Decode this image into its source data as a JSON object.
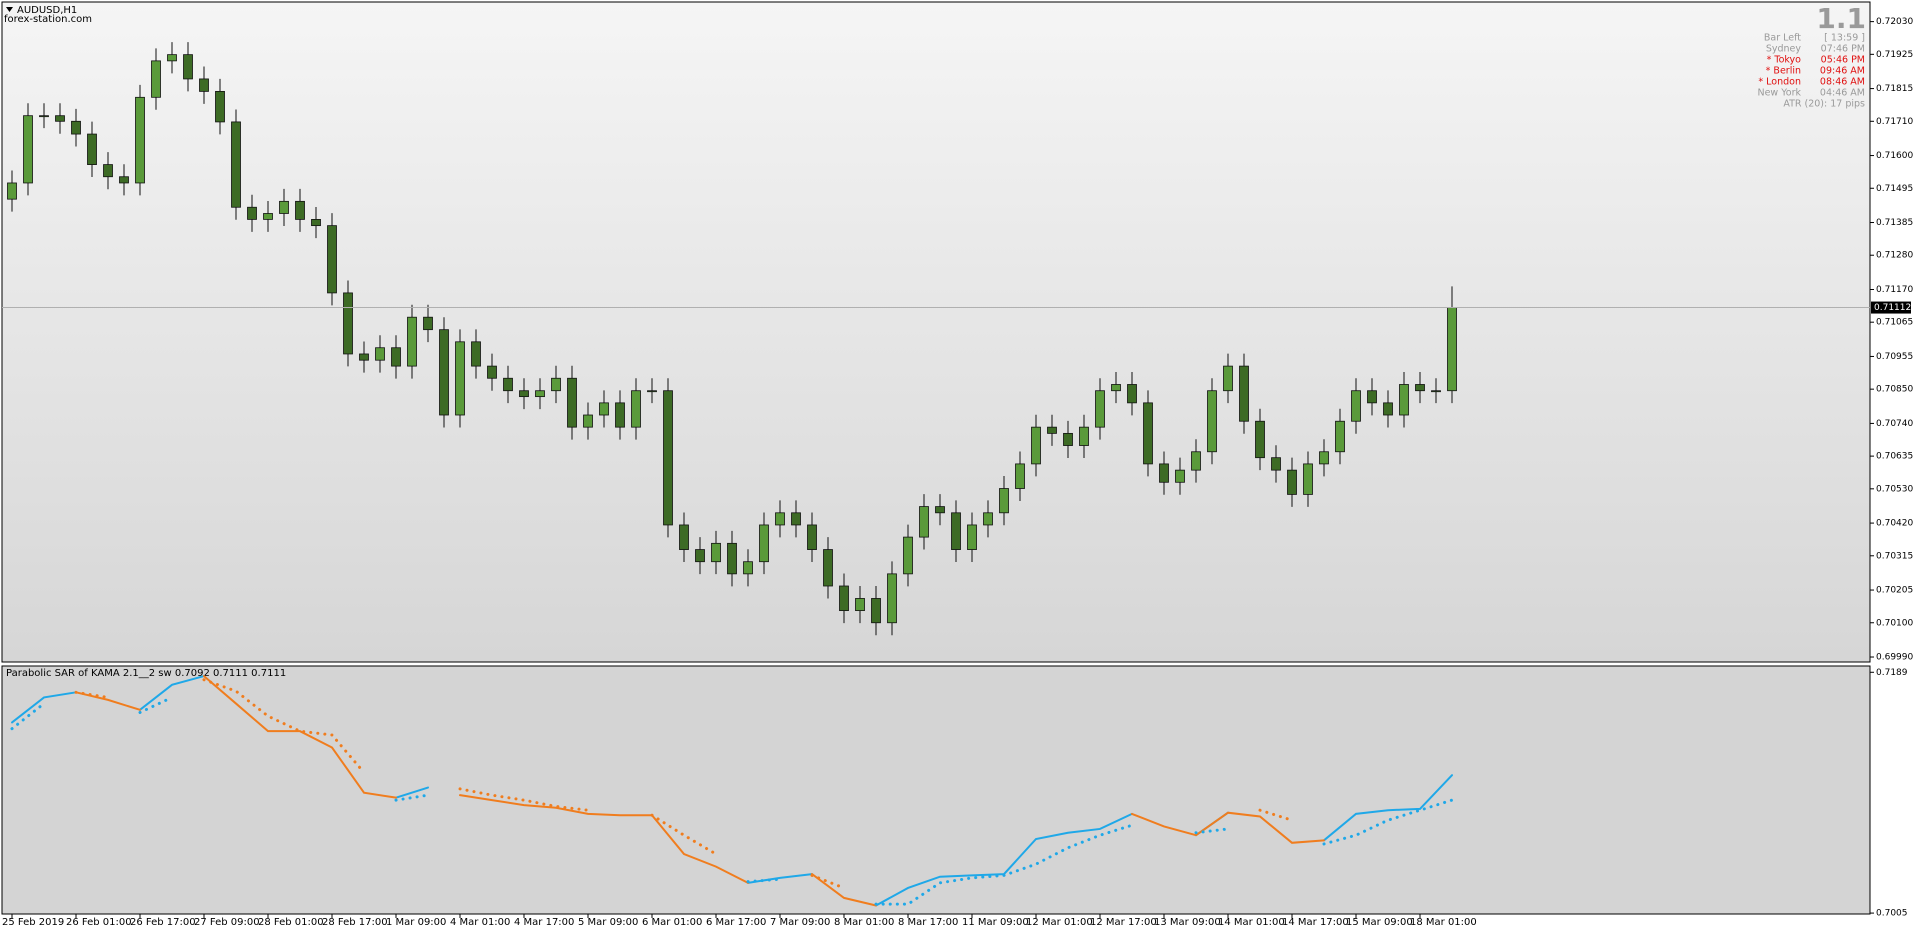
{
  "chart_data": [
    {
      "type": "candlestick",
      "title": "AUDUSD,H1",
      "subtitle": "forex-station.com",
      "categories": [
        "25 Feb 2019",
        null,
        null,
        null,
        "26 Feb 01:00",
        null,
        null,
        null,
        "26 Feb 17:00",
        null,
        null,
        null,
        "27 Feb 09:00",
        null,
        null,
        null,
        "28 Feb 01:00",
        null,
        null,
        null,
        "28 Feb 17:00",
        null,
        null,
        null,
        "1 Mar 09:00",
        null,
        null,
        null,
        "4 Mar 01:00",
        null,
        null,
        null,
        "4 Mar 17:00",
        null,
        null,
        null,
        "5 Mar 09:00",
        null,
        null,
        null,
        "6 Mar 01:00",
        null,
        null,
        null,
        "6 Mar 17:00",
        null,
        null,
        null,
        "7 Mar 09:00",
        null,
        null,
        null,
        "8 Mar 01:00",
        null,
        null,
        null,
        "8 Mar 17:00",
        null,
        null,
        null,
        "11 Mar 09:00",
        null,
        null,
        null,
        "12 Mar 01:00",
        null,
        null,
        null,
        "12 Mar 17:00",
        null,
        null,
        null,
        "13 Mar 09:00",
        null,
        null,
        null,
        "14 Mar 01:00",
        null,
        null,
        null,
        "14 Mar 17:00",
        null,
        null,
        null,
        "15 Mar 09:00",
        null,
        null,
        null,
        "18 Mar 01:00",
        null,
        null
      ],
      "open": [
        0.7146,
        0.71512,
        0.71728,
        0.71728,
        0.7171,
        0.71669,
        0.71571,
        0.71532,
        0.71512,
        0.71787,
        0.71904,
        0.71924,
        0.71846,
        0.71806,
        0.71708,
        0.71434,
        0.71395,
        0.71414,
        0.71453,
        0.71395,
        0.71375,
        0.71159,
        0.70963,
        0.70943,
        0.70983,
        0.70924,
        0.71081,
        0.71041,
        0.70767,
        0.71002,
        0.70924,
        0.70885,
        0.70845,
        0.70826,
        0.70845,
        0.70885,
        0.70728,
        0.70767,
        0.70806,
        0.70728,
        0.70845,
        0.70845,
        0.70414,
        0.70335,
        0.70296,
        0.70355,
        0.70257,
        0.70296,
        0.70414,
        0.70453,
        0.70414,
        0.70335,
        0.70218,
        0.70139,
        0.70178,
        0.701,
        0.70257,
        0.70375,
        0.70473,
        0.70453,
        0.70335,
        0.70414,
        0.70453,
        0.70531,
        0.7061,
        0.70728,
        0.70708,
        0.70669,
        0.70728,
        0.70845,
        0.70865,
        0.70806,
        0.7061,
        0.70551,
        0.7059,
        0.70649,
        0.70845,
        0.70924,
        0.70747,
        0.7063,
        0.7059,
        0.70512,
        0.7061,
        0.70649,
        0.70747,
        0.70845,
        0.70806,
        0.70767,
        0.70865,
        0.70845,
        0.70845
      ],
      "high": [
        0.71552,
        0.71768,
        0.71768,
        0.71768,
        0.7175,
        0.71709,
        0.71611,
        0.71572,
        0.71827,
        0.71944,
        0.71964,
        0.71964,
        0.71886,
        0.71846,
        0.71748,
        0.71474,
        0.71454,
        0.71493,
        0.71493,
        0.71435,
        0.71415,
        0.71199,
        0.71003,
        0.71023,
        0.71023,
        0.71121,
        0.71121,
        0.71081,
        0.71042,
        0.71042,
        0.70964,
        0.70925,
        0.70885,
        0.70885,
        0.70925,
        0.70925,
        0.70807,
        0.70846,
        0.70846,
        0.70885,
        0.70885,
        0.70885,
        0.70454,
        0.70375,
        0.70395,
        0.70395,
        0.70336,
        0.70454,
        0.70493,
        0.70493,
        0.70454,
        0.70375,
        0.70258,
        0.70218,
        0.70218,
        0.70297,
        0.70415,
        0.70513,
        0.70513,
        0.70493,
        0.70454,
        0.70493,
        0.70571,
        0.7065,
        0.70768,
        0.70768,
        0.70748,
        0.70768,
        0.70885,
        0.70905,
        0.70905,
        0.70846,
        0.7065,
        0.7063,
        0.70689,
        0.70885,
        0.70964,
        0.70964,
        0.70787,
        0.7067,
        0.7063,
        0.7065,
        0.70689,
        0.70787,
        0.70885,
        0.70885,
        0.70846,
        0.70905,
        0.70905,
        0.70885,
        0.7118
      ],
      "low": [
        0.7142,
        0.71472,
        0.71688,
        0.7167,
        0.71629,
        0.71531,
        0.71492,
        0.71472,
        0.71472,
        0.71747,
        0.71864,
        0.71806,
        0.71766,
        0.71668,
        0.71394,
        0.71355,
        0.71355,
        0.71374,
        0.71355,
        0.71335,
        0.71119,
        0.70923,
        0.70903,
        0.70903,
        0.70884,
        0.70884,
        0.71001,
        0.70727,
        0.70727,
        0.70884,
        0.70845,
        0.70805,
        0.70786,
        0.70786,
        0.70805,
        0.70688,
        0.70688,
        0.70727,
        0.70688,
        0.70688,
        0.70805,
        0.70374,
        0.70295,
        0.70256,
        0.70256,
        0.70217,
        0.70217,
        0.70256,
        0.70374,
        0.70374,
        0.70295,
        0.70178,
        0.70099,
        0.70099,
        0.7006,
        0.7006,
        0.70217,
        0.70335,
        0.70413,
        0.70295,
        0.70295,
        0.70374,
        0.70413,
        0.70491,
        0.7057,
        0.70668,
        0.70629,
        0.70629,
        0.70688,
        0.70805,
        0.70766,
        0.7057,
        0.70511,
        0.70511,
        0.7055,
        0.70609,
        0.70805,
        0.70707,
        0.7059,
        0.7055,
        0.70472,
        0.70472,
        0.7057,
        0.70609,
        0.70707,
        0.70766,
        0.70727,
        0.70727,
        0.70805,
        0.70805,
        0.70805
      ],
      "close": [
        0.71512,
        0.71728,
        0.71728,
        0.7171,
        0.71669,
        0.71571,
        0.71532,
        0.71512,
        0.71787,
        0.71904,
        0.71924,
        0.71846,
        0.71806,
        0.71708,
        0.71434,
        0.71395,
        0.71414,
        0.71453,
        0.71395,
        0.71375,
        0.71159,
        0.70963,
        0.70943,
        0.70983,
        0.70924,
        0.71081,
        0.71041,
        0.70767,
        0.71002,
        0.70924,
        0.70885,
        0.70845,
        0.70826,
        0.70845,
        0.70885,
        0.70728,
        0.70767,
        0.70806,
        0.70728,
        0.70845,
        0.70845,
        0.70414,
        0.70335,
        0.70296,
        0.70355,
        0.70257,
        0.70296,
        0.70414,
        0.70453,
        0.70414,
        0.70335,
        0.70218,
        0.70139,
        0.70178,
        0.701,
        0.70257,
        0.70375,
        0.70473,
        0.70453,
        0.70335,
        0.70414,
        0.70453,
        0.70531,
        0.7061,
        0.70728,
        0.70708,
        0.70669,
        0.70728,
        0.70845,
        0.70865,
        0.70806,
        0.7061,
        0.70551,
        0.7059,
        0.70649,
        0.70845,
        0.70924,
        0.70747,
        0.7063,
        0.7059,
        0.70512,
        0.7061,
        0.70649,
        0.70747,
        0.70845,
        0.70806,
        0.70767,
        0.70865,
        0.70845,
        0.70845,
        0.71112
      ],
      "up_color": "#5a9a3a",
      "down_color": "#3d6b25",
      "ylim": [
        0.69974,
        0.72093
      ],
      "yticks": [
        {
          "value": 0.7203,
          "label": "0.72030"
        },
        0.71925,
        0.71815,
        {
          "value": 0.7171,
          "label": "0.71710"
        },
        {
          "value": 0.716,
          "label": "0.71600"
        },
        0.71495,
        0.71385,
        {
          "value": 0.7128,
          "label": "0.71280"
        },
        {
          "value": 0.7117,
          "label": "0.71170"
        },
        0.71065,
        0.70955,
        {
          "value": 0.7085,
          "label": "0.70850"
        },
        {
          "value": 0.7074,
          "label": "0.70740"
        },
        0.70635,
        {
          "value": 0.7053,
          "label": "0.70530"
        },
        {
          "value": 0.7042,
          "label": "0.70420"
        },
        0.70315,
        0.70205,
        {
          "value": 0.701,
          "label": "0.70100"
        },
        {
          "value": 0.6999,
          "label": "0.69990"
        }
      ],
      "last_price": 0.71112
    },
    {
      "type": "line",
      "title": "Parabolic SAR of KAMA 2.1__2 sw 0.7092 0.7111 0.7111",
      "series": [
        {
          "style": "line",
          "color": "#1fa8e8",
          "values": [
            0.71507,
            0.71698,
            0.71737,
            null,
            0.71603,
            0.71794,
            0.71861,
            null,
            null,
            null,
            null,
            null,
            0.70932,
            0.71009,
            null,
            null,
            null,
            null,
            null,
            null,
            null,
            null,
            null,
            0.70281,
            0.70319,
            0.70348,
            null,
            0.70108,
            0.70242,
            0.70328,
            0.70338,
            0.70348,
            0.70616,
            0.70664,
            0.70693,
            0.70808,
            null,
            0.70645,
            0.70817,
            null,
            null,
            0.70606,
            0.70808,
            0.70836,
            0.70846,
            0.71104
          ]
        },
        {
          "style": "line",
          "color": "#f07d1e",
          "values": [
            null,
            null,
            0.71737,
            0.71679,
            0.71603,
            null,
            0.71861,
            0.71651,
            0.7144,
            0.7144,
            0.71315,
            0.7097,
            0.70932,
            null,
            0.70951,
            0.70913,
            0.70875,
            0.70855,
            0.70808,
            0.70798,
            0.70798,
            0.70501,
            0.70405,
            0.70281,
            null,
            0.70348,
            0.70166,
            0.70108,
            null,
            null,
            null,
            null,
            null,
            null,
            null,
            0.70808,
            0.70712,
            0.70645,
            0.70817,
            0.70788,
            0.70587,
            0.70606,
            null,
            null,
            null,
            null
          ]
        },
        {
          "style": "dots",
          "color": "#1fa8e8",
          "values": [
            0.71459,
            0.71651,
            null,
            null,
            0.71583,
            0.71698,
            null,
            null,
            null,
            null,
            null,
            null,
            0.70913,
            0.70951,
            null,
            null,
            null,
            null,
            null,
            0.70798,
            null,
            null,
            null,
            0.7029,
            0.70309,
            null,
            null,
            0.70118,
            0.70118,
            0.70281,
            0.70319,
            0.70338,
            0.70424,
            0.70549,
            0.70645,
            0.70721,
            null,
            0.70664,
            0.70693,
            null,
            null,
            0.70578,
            0.70645,
            0.7076,
            0.70836,
            0.70913
          ]
        },
        {
          "style": "dots",
          "color": "#f07d1e",
          "values": [
            null,
            null,
            0.71737,
            0.71698,
            null,
            null,
            0.71833,
            0.71746,
            0.71555,
            0.7144,
            0.71411,
            0.71124,
            null,
            null,
            0.70999,
            0.70951,
            0.70913,
            0.70865,
            0.70836,
            null,
            0.70798,
            0.70645,
            0.70501,
            null,
            null,
            0.70338,
            0.70242,
            null,
            null,
            null,
            null,
            null,
            null,
            null,
            null,
            null,
            0.70788,
            null,
            null,
            0.70836,
            0.7076,
            null,
            null,
            null,
            null,
            null
          ]
        }
      ],
      "ylim": [
        0.70043,
        0.71938
      ],
      "yticks": [
        0.7189,
        0.7005
      ]
    }
  ],
  "info_panel": {
    "big": "1.1",
    "rows": [
      {
        "label": "Bar Left",
        "value": "[ 13:59 ]",
        "color": "#9a9a9a"
      },
      {
        "label": "Sydney",
        "value": "07:46 PM",
        "color": "#9a9a9a"
      },
      {
        "label": "* Tokyo",
        "value": "05:46 PM",
        "color": "#e01010"
      },
      {
        "label": "* Berlin",
        "value": "09:46 AM",
        "color": "#e01010"
      },
      {
        "label": "* London",
        "value": "08:46 AM",
        "color": "#e01010"
      },
      {
        "label": "New York",
        "value": "04:46 AM",
        "color": "#9a9a9a"
      }
    ],
    "atr": "ATR (20): 17 pips"
  }
}
